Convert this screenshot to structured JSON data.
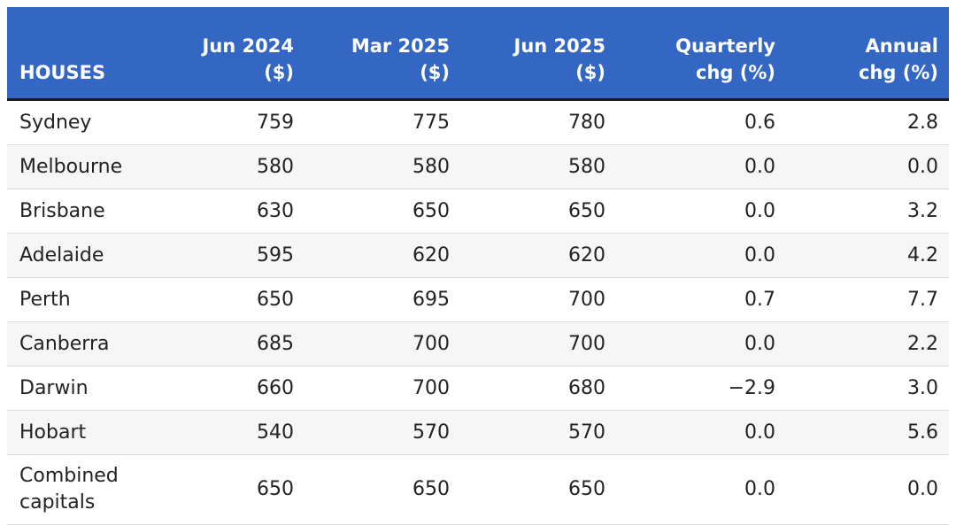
{
  "table": {
    "header": [
      [
        "HOUSES"
      ],
      [
        "Jun 2024",
        "($)"
      ],
      [
        "Mar 2025",
        "($)"
      ],
      [
        "Jun 2025",
        "($)"
      ],
      [
        "Quarterly",
        "chg (%)"
      ],
      [
        "Annual",
        "chg (%)"
      ]
    ],
    "rows": [
      [
        "Sydney",
        "759",
        "775",
        "780",
        "0.6",
        "2.8"
      ],
      [
        "Melbourne",
        "580",
        "580",
        "580",
        "0.0",
        "0.0"
      ],
      [
        "Brisbane",
        "630",
        "650",
        "650",
        "0.0",
        "3.2"
      ],
      [
        "Adelaide",
        "595",
        "620",
        "620",
        "0.0",
        "4.2"
      ],
      [
        "Perth",
        "650",
        "695",
        "700",
        "0.7",
        "7.7"
      ],
      [
        "Canberra",
        "685",
        "700",
        "700",
        "0.0",
        "2.2"
      ],
      [
        "Darwin",
        "660",
        "700",
        "680",
        "−2.9",
        "3.0"
      ],
      [
        "Hobart",
        "540",
        "570",
        "570",
        "0.0",
        "5.6"
      ],
      [
        "Combined capitals",
        "650",
        "650",
        "650",
        "0.0",
        "0.0"
      ]
    ]
  }
}
